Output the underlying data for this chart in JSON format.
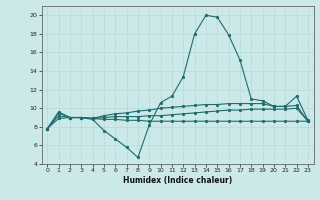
{
  "xlabel": "Humidex (Indice chaleur)",
  "xlim": [
    -0.5,
    23.5
  ],
  "ylim": [
    4,
    21
  ],
  "yticks": [
    4,
    6,
    8,
    10,
    12,
    14,
    16,
    18,
    20
  ],
  "xticks": [
    0,
    1,
    2,
    3,
    4,
    5,
    6,
    7,
    8,
    9,
    10,
    11,
    12,
    13,
    14,
    15,
    16,
    17,
    18,
    19,
    20,
    21,
    22,
    23
  ],
  "bg_color": "#cce9e9",
  "line_color": "#1f6b6b",
  "grid_color": "#b8d8d8",
  "lines": [
    [
      7.8,
      9.6,
      9.0,
      9.0,
      8.8,
      7.6,
      6.7,
      5.8,
      4.7,
      8.2,
      10.6,
      11.3,
      13.4,
      18.0,
      20.0,
      19.8,
      17.9,
      15.2,
      11.0,
      10.8,
      10.2,
      10.2,
      11.3,
      8.7
    ],
    [
      7.8,
      9.5,
      9.0,
      9.0,
      8.9,
      9.2,
      9.4,
      9.5,
      9.7,
      9.8,
      10.0,
      10.1,
      10.2,
      10.3,
      10.4,
      10.4,
      10.5,
      10.5,
      10.5,
      10.5,
      10.2,
      10.2,
      10.3,
      8.6
    ],
    [
      7.8,
      9.2,
      9.0,
      9.0,
      8.9,
      9.0,
      9.1,
      9.1,
      9.1,
      9.2,
      9.2,
      9.3,
      9.4,
      9.5,
      9.6,
      9.7,
      9.8,
      9.8,
      9.9,
      9.9,
      9.9,
      9.9,
      10.0,
      8.6
    ],
    [
      7.8,
      8.9,
      9.0,
      9.0,
      8.9,
      8.8,
      8.8,
      8.7,
      8.7,
      8.6,
      8.6,
      8.6,
      8.6,
      8.6,
      8.6,
      8.6,
      8.6,
      8.6,
      8.6,
      8.6,
      8.6,
      8.6,
      8.6,
      8.6
    ]
  ]
}
